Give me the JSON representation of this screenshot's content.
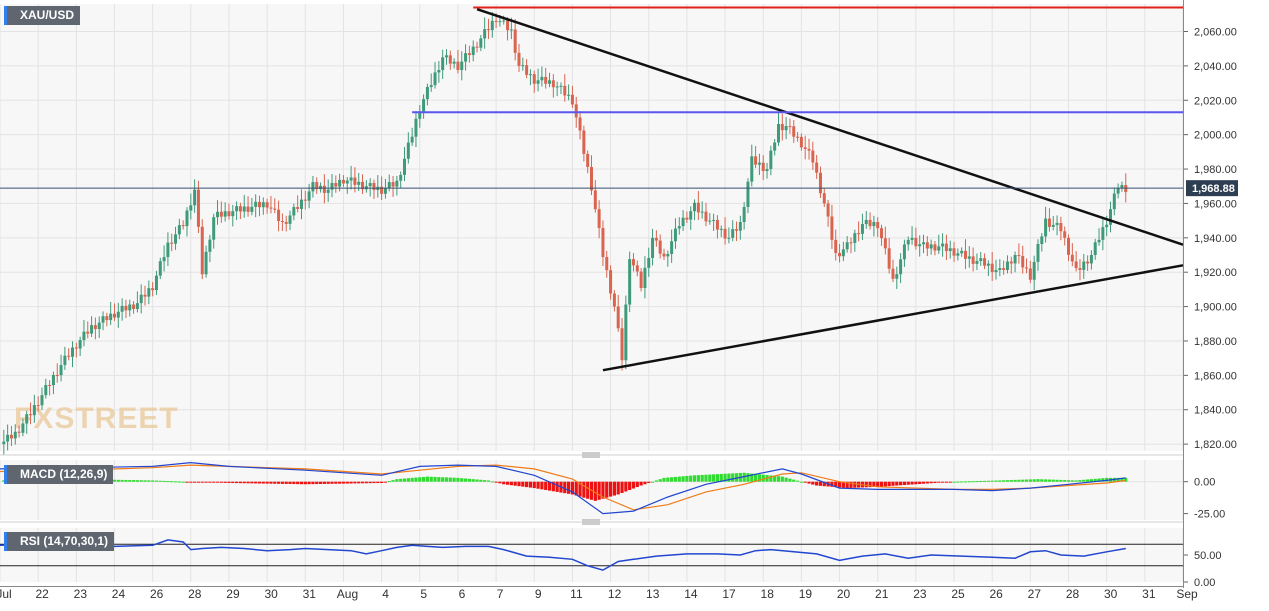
{
  "chart_data": [
    {
      "type": "candlestick",
      "title": "XAU/USD",
      "current_price": 1968.88,
      "current_price_label": "1,968.88",
      "ylim": [
        1816,
        2076
      ],
      "y_ticks": [
        {
          "value": 2060,
          "label": "2,060.00"
        },
        {
          "value": 2040,
          "label": "2,040.00"
        },
        {
          "value": 2020,
          "label": "2,020.00"
        },
        {
          "value": 2000,
          "label": "2,000.00"
        },
        {
          "value": 1980,
          "label": "1,980.00"
        },
        {
          "value": 1960,
          "label": "1,960.00"
        },
        {
          "value": 1940,
          "label": "1,940.00"
        },
        {
          "value": 1920,
          "label": "1,920.00"
        },
        {
          "value": 1900,
          "label": "1,900.00"
        },
        {
          "value": 1880,
          "label": "1,880.00"
        },
        {
          "value": 1860,
          "label": "1,860.00"
        },
        {
          "value": 1840,
          "label": "1,840.00"
        },
        {
          "value": 1820,
          "label": "1,820.00"
        }
      ],
      "x_ticks": [
        {
          "x": 0,
          "label": "Jul"
        },
        {
          "x": 10,
          "label": "22"
        },
        {
          "x": 20,
          "label": "23"
        },
        {
          "x": 30,
          "label": "24"
        },
        {
          "x": 40,
          "label": "26"
        },
        {
          "x": 50,
          "label": "28"
        },
        {
          "x": 60,
          "label": "29"
        },
        {
          "x": 70,
          "label": "30"
        },
        {
          "x": 80,
          "label": "31"
        },
        {
          "x": 90,
          "label": "Aug"
        },
        {
          "x": 100,
          "label": "4"
        },
        {
          "x": 110,
          "label": "5"
        },
        {
          "x": 120,
          "label": "6"
        },
        {
          "x": 130,
          "label": "7"
        },
        {
          "x": 140,
          "label": "9"
        },
        {
          "x": 150,
          "label": "11"
        },
        {
          "x": 160,
          "label": "12"
        },
        {
          "x": 170,
          "label": "13"
        },
        {
          "x": 180,
          "label": "14"
        },
        {
          "x": 190,
          "label": "17"
        },
        {
          "x": 200,
          "label": "18"
        },
        {
          "x": 210,
          "label": "19"
        },
        {
          "x": 220,
          "label": "20"
        },
        {
          "x": 230,
          "label": "21"
        },
        {
          "x": 240,
          "label": "23"
        },
        {
          "x": 250,
          "label": "25"
        },
        {
          "x": 260,
          "label": "26"
        },
        {
          "x": 270,
          "label": "27"
        },
        {
          "x": 280,
          "label": "28"
        },
        {
          "x": 290,
          "label": "30"
        },
        {
          "x": 300,
          "label": "31"
        },
        {
          "x": 310,
          "label": "Sep"
        }
      ],
      "x_range": [
        0,
        310
      ],
      "colors": {
        "up": "#3f9a7a",
        "down": "#d9644f"
      },
      "close_path": [
        [
          0,
          1820
        ],
        [
          4,
          1826
        ],
        [
          8,
          1838
        ],
        [
          12,
          1852
        ],
        [
          16,
          1866
        ],
        [
          20,
          1878
        ],
        [
          24,
          1888
        ],
        [
          30,
          1896
        ],
        [
          36,
          1902
        ],
        [
          40,
          1912
        ],
        [
          44,
          1936
        ],
        [
          48,
          1948
        ],
        [
          51,
          1968
        ],
        [
          53,
          1920
        ],
        [
          56,
          1952
        ],
        [
          60,
          1955
        ],
        [
          66,
          1958
        ],
        [
          70,
          1960
        ],
        [
          74,
          1948
        ],
        [
          78,
          1958
        ],
        [
          82,
          1970
        ],
        [
          86,
          1968
        ],
        [
          90,
          1974
        ],
        [
          96,
          1970
        ],
        [
          100,
          1968
        ],
        [
          104,
          1972
        ],
        [
          108,
          2000
        ],
        [
          110,
          2016
        ],
        [
          113,
          2030
        ],
        [
          116,
          2045
        ],
        [
          120,
          2040
        ],
        [
          124,
          2050
        ],
        [
          128,
          2062
        ],
        [
          130,
          2068
        ],
        [
          134,
          2060
        ],
        [
          136,
          2040
        ],
        [
          140,
          2032
        ],
        [
          145,
          2030
        ],
        [
          150,
          2020
        ],
        [
          152,
          2000
        ],
        [
          155,
          1970
        ],
        [
          158,
          1930
        ],
        [
          161,
          1900
        ],
        [
          163,
          1870
        ],
        [
          165,
          1930
        ],
        [
          168,
          1912
        ],
        [
          171,
          1940
        ],
        [
          174,
          1928
        ],
        [
          178,
          1948
        ],
        [
          182,
          1958
        ],
        [
          186,
          1950
        ],
        [
          191,
          1940
        ],
        [
          194,
          1948
        ],
        [
          197,
          1985
        ],
        [
          201,
          1980
        ],
        [
          204,
          2005
        ],
        [
          206,
          2005
        ],
        [
          210,
          1995
        ],
        [
          213,
          1985
        ],
        [
          216,
          1960
        ],
        [
          219,
          1930
        ],
        [
          222,
          1935
        ],
        [
          226,
          1948
        ],
        [
          230,
          1948
        ],
        [
          234,
          1915
        ],
        [
          238,
          1940
        ],
        [
          242,
          1935
        ],
        [
          246,
          1935
        ],
        [
          250,
          1932
        ],
        [
          254,
          1928
        ],
        [
          258,
          1925
        ],
        [
          262,
          1920
        ],
        [
          266,
          1930
        ],
        [
          270,
          1918
        ],
        [
          274,
          1950
        ],
        [
          278,
          1945
        ],
        [
          282,
          1920
        ],
        [
          286,
          1930
        ],
        [
          290,
          1950
        ],
        [
          293,
          1970
        ],
        [
          295,
          1969
        ]
      ],
      "trendlines": [
        {
          "name": "upper-trendline",
          "color": "#111111",
          "points": [
            [
              125,
              2073
            ],
            [
              310,
              1936
            ]
          ]
        },
        {
          "name": "lower-trendline",
          "color": "#111111",
          "points": [
            [
              158,
              1863
            ],
            [
              310,
              1924
            ]
          ]
        },
        {
          "name": "resistance-line",
          "color": "#e0221b",
          "points": [
            [
              124,
              2074
            ],
            [
              310,
              2074
            ]
          ]
        },
        {
          "name": "support-line",
          "color": "#5b55ef",
          "points": [
            [
              108,
              2013
            ],
            [
              310,
              2013
            ]
          ]
        }
      ],
      "watermark": "FXSTREET"
    },
    {
      "type": "macd",
      "label": "MACD (12,26,9)",
      "ylim": [
        -30,
        17
      ],
      "y_ticks": [
        {
          "value": 0,
          "label": "0.00"
        },
        {
          "value": -25,
          "label": "-25.00"
        }
      ],
      "colors": {
        "macd": "#2146d0",
        "signal": "#f07c18",
        "hist_up": "#2fdc2f",
        "hist_down": "#ee1111"
      },
      "macd_path": [
        [
          0,
          10
        ],
        [
          20,
          11
        ],
        [
          40,
          12
        ],
        [
          50,
          15
        ],
        [
          60,
          12
        ],
        [
          80,
          9
        ],
        [
          100,
          5
        ],
        [
          110,
          12
        ],
        [
          120,
          13
        ],
        [
          130,
          12
        ],
        [
          140,
          5
        ],
        [
          150,
          -8
        ],
        [
          158,
          -25
        ],
        [
          166,
          -23
        ],
        [
          175,
          -12
        ],
        [
          185,
          -2
        ],
        [
          195,
          4
        ],
        [
          205,
          10
        ],
        [
          210,
          6
        ],
        [
          220,
          -5
        ],
        [
          230,
          -6
        ],
        [
          250,
          -6
        ],
        [
          260,
          -7
        ],
        [
          270,
          -5
        ],
        [
          280,
          -2
        ],
        [
          290,
          1
        ],
        [
          295,
          3
        ]
      ],
      "signal_path": [
        [
          0,
          8
        ],
        [
          20,
          9
        ],
        [
          40,
          11
        ],
        [
          50,
          13
        ],
        [
          60,
          12
        ],
        [
          80,
          10
        ],
        [
          100,
          6
        ],
        [
          110,
          9
        ],
        [
          120,
          12
        ],
        [
          130,
          13
        ],
        [
          140,
          10
        ],
        [
          150,
          2
        ],
        [
          158,
          -12
        ],
        [
          166,
          -22
        ],
        [
          175,
          -18
        ],
        [
          185,
          -8
        ],
        [
          195,
          -2
        ],
        [
          205,
          6
        ],
        [
          210,
          7
        ],
        [
          220,
          0
        ],
        [
          230,
          -4
        ],
        [
          250,
          -6
        ],
        [
          260,
          -6
        ],
        [
          270,
          -5
        ],
        [
          280,
          -3
        ],
        [
          290,
          -1
        ],
        [
          295,
          1
        ]
      ],
      "hist_path": [
        [
          0,
          1
        ],
        [
          20,
          2
        ],
        [
          40,
          1
        ],
        [
          48,
          0
        ],
        [
          60,
          -1
        ],
        [
          80,
          -2
        ],
        [
          100,
          -1
        ],
        [
          104,
          2
        ],
        [
          112,
          4
        ],
        [
          120,
          3
        ],
        [
          128,
          1
        ],
        [
          132,
          -2
        ],
        [
          140,
          -5
        ],
        [
          150,
          -10
        ],
        [
          156,
          -15
        ],
        [
          162,
          -10
        ],
        [
          168,
          -3
        ],
        [
          174,
          3
        ],
        [
          182,
          5
        ],
        [
          195,
          7
        ],
        [
          205,
          4
        ],
        [
          210,
          0
        ],
        [
          214,
          -3
        ],
        [
          222,
          -5
        ],
        [
          230,
          -4
        ],
        [
          240,
          -2
        ],
        [
          250,
          0
        ],
        [
          262,
          1
        ],
        [
          272,
          2
        ],
        [
          282,
          1
        ],
        [
          290,
          3
        ],
        [
          295,
          3
        ]
      ]
    },
    {
      "type": "rsi",
      "label": "RSI (14,70,30,1)",
      "ylim": [
        0,
        100
      ],
      "levels": [
        70,
        30
      ],
      "y_ticks": [
        {
          "value": 50,
          "label": "50.00"
        },
        {
          "value": 0,
          "label": "0.00"
        }
      ],
      "color": "#2146d0",
      "rsi_path": [
        [
          0,
          68
        ],
        [
          10,
          70
        ],
        [
          20,
          72
        ],
        [
          25,
          72
        ],
        [
          30,
          66
        ],
        [
          40,
          68
        ],
        [
          44,
          78
        ],
        [
          48,
          74
        ],
        [
          50,
          60
        ],
        [
          53,
          62
        ],
        [
          58,
          64
        ],
        [
          64,
          62
        ],
        [
          70,
          58
        ],
        [
          76,
          60
        ],
        [
          80,
          62
        ],
        [
          86,
          60
        ],
        [
          92,
          58
        ],
        [
          96,
          52
        ],
        [
          100,
          58
        ],
        [
          104,
          64
        ],
        [
          108,
          68
        ],
        [
          112,
          66
        ],
        [
          116,
          64
        ],
        [
          122,
          66
        ],
        [
          128,
          66
        ],
        [
          132,
          60
        ],
        [
          138,
          48
        ],
        [
          144,
          46
        ],
        [
          150,
          42
        ],
        [
          154,
          30
        ],
        [
          158,
          22
        ],
        [
          162,
          38
        ],
        [
          166,
          42
        ],
        [
          172,
          48
        ],
        [
          180,
          52
        ],
        [
          188,
          52
        ],
        [
          194,
          50
        ],
        [
          198,
          58
        ],
        [
          202,
          60
        ],
        [
          208,
          56
        ],
        [
          214,
          52
        ],
        [
          220,
          40
        ],
        [
          226,
          48
        ],
        [
          232,
          52
        ],
        [
          238,
          44
        ],
        [
          244,
          50
        ],
        [
          252,
          48
        ],
        [
          260,
          46
        ],
        [
          266,
          44
        ],
        [
          270,
          56
        ],
        [
          274,
          58
        ],
        [
          278,
          50
        ],
        [
          284,
          48
        ],
        [
          290,
          56
        ],
        [
          295,
          62
        ]
      ]
    }
  ]
}
